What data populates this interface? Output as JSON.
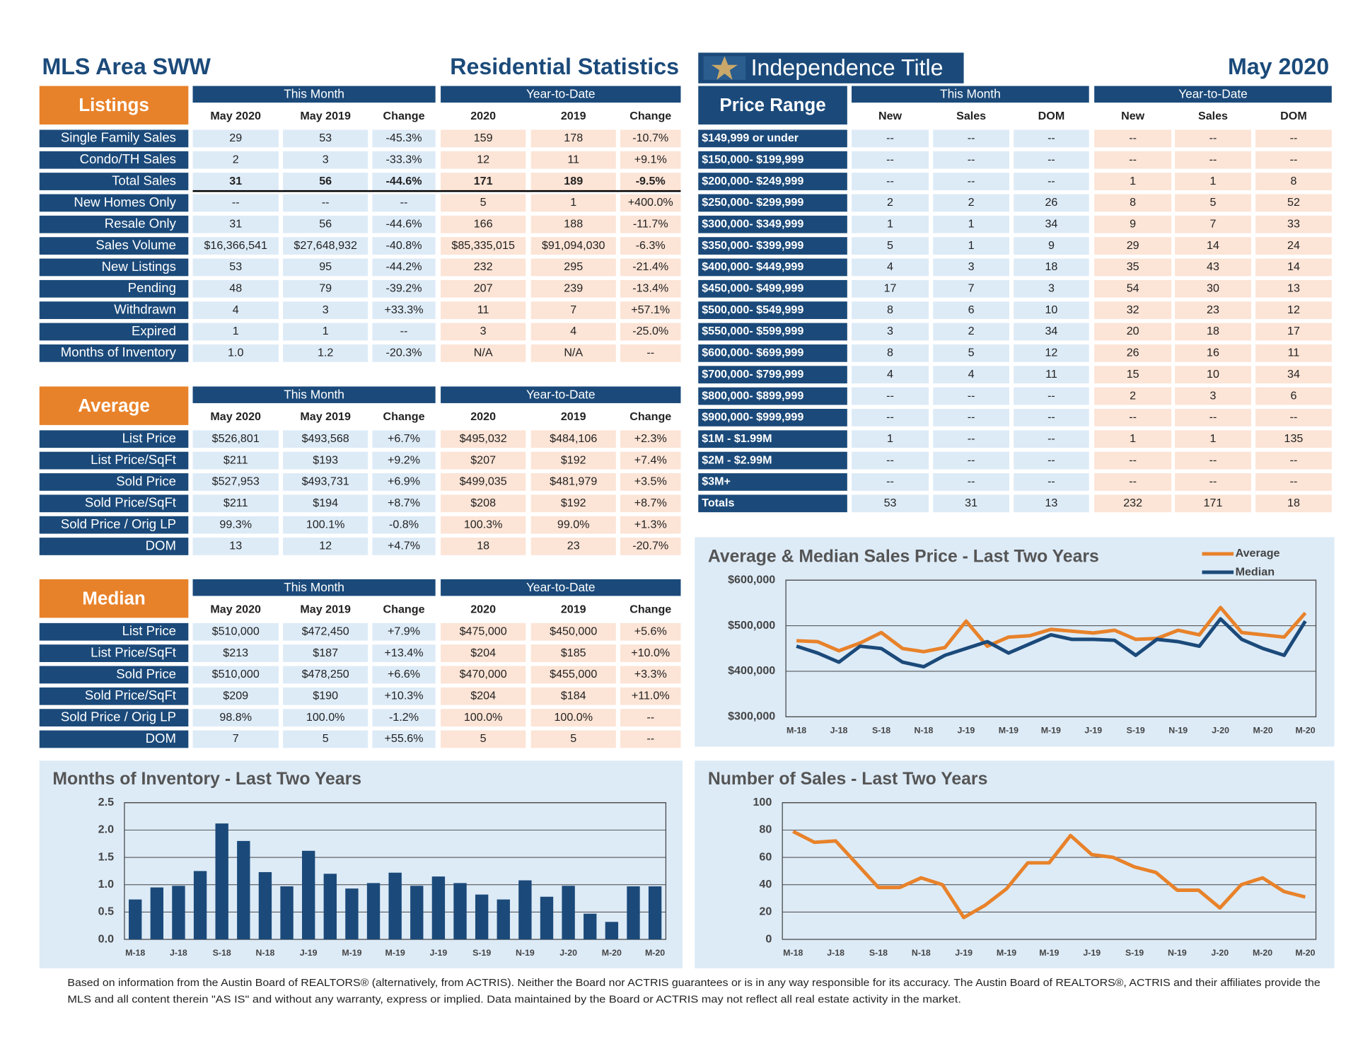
{
  "header": {
    "area": "MLS Area SWW",
    "title": "Residential Statistics",
    "brand": "Independence Title",
    "date": "May 2020"
  },
  "listings": {
    "label": "Listings",
    "groups": [
      "This Month",
      "Year-to-Date"
    ],
    "columns": [
      "May 2020",
      "May 2019",
      "Change",
      "2020",
      "2019",
      "Change"
    ],
    "rows": [
      {
        "label": "Single Family Sales",
        "cells": [
          "29",
          "53",
          "-45.3%",
          "159",
          "178",
          "-10.7%"
        ]
      },
      {
        "label": "Condo/TH Sales",
        "cells": [
          "2",
          "3",
          "-33.3%",
          "12",
          "11",
          "+9.1%"
        ]
      },
      {
        "label": "Total Sales",
        "cells": [
          "31",
          "56",
          "-44.6%",
          "171",
          "189",
          "-9.5%"
        ]
      },
      {
        "label": "New Homes Only",
        "cells": [
          "--",
          "--",
          "--",
          "5",
          "1",
          "+400.0%"
        ]
      },
      {
        "label": "Resale Only",
        "cells": [
          "31",
          "56",
          "-44.6%",
          "166",
          "188",
          "-11.7%"
        ]
      },
      {
        "label": "Sales Volume",
        "cells": [
          "$16,366,541",
          "$27,648,932",
          "-40.8%",
          "$85,335,015",
          "$91,094,030",
          "-6.3%"
        ]
      },
      {
        "label": "New Listings",
        "cells": [
          "53",
          "95",
          "-44.2%",
          "232",
          "295",
          "-21.4%"
        ]
      },
      {
        "label": "Pending",
        "cells": [
          "48",
          "79",
          "-39.2%",
          "207",
          "239",
          "-13.4%"
        ]
      },
      {
        "label": "Withdrawn",
        "cells": [
          "4",
          "3",
          "+33.3%",
          "11",
          "7",
          "+57.1%"
        ]
      },
      {
        "label": "Expired",
        "cells": [
          "1",
          "1",
          "--",
          "3",
          "4",
          "-25.0%"
        ]
      },
      {
        "label": "Months of Inventory",
        "cells": [
          "1.0",
          "1.2",
          "-20.3%",
          "N/A",
          "N/A",
          "--"
        ]
      }
    ]
  },
  "average": {
    "label": "Average",
    "groups": [
      "This Month",
      "Year-to-Date"
    ],
    "columns": [
      "May 2020",
      "May 2019",
      "Change",
      "2020",
      "2019",
      "Change"
    ],
    "rows": [
      {
        "label": "List Price",
        "cells": [
          "$526,801",
          "$493,568",
          "+6.7%",
          "$495,032",
          "$484,106",
          "+2.3%"
        ]
      },
      {
        "label": "List Price/SqFt",
        "cells": [
          "$211",
          "$193",
          "+9.2%",
          "$207",
          "$192",
          "+7.4%"
        ]
      },
      {
        "label": "Sold Price",
        "cells": [
          "$527,953",
          "$493,731",
          "+6.9%",
          "$499,035",
          "$481,979",
          "+3.5%"
        ]
      },
      {
        "label": "Sold Price/SqFt",
        "cells": [
          "$211",
          "$194",
          "+8.7%",
          "$208",
          "$192",
          "+8.7%"
        ]
      },
      {
        "label": "Sold Price / Orig LP",
        "cells": [
          "99.3%",
          "100.1%",
          "-0.8%",
          "100.3%",
          "99.0%",
          "+1.3%"
        ]
      },
      {
        "label": "DOM",
        "cells": [
          "13",
          "12",
          "+4.7%",
          "18",
          "23",
          "-20.7%"
        ]
      }
    ]
  },
  "median": {
    "label": "Median",
    "groups": [
      "This Month",
      "Year-to-Date"
    ],
    "columns": [
      "May 2020",
      "May 2019",
      "Change",
      "2020",
      "2019",
      "Change"
    ],
    "rows": [
      {
        "label": "List Price",
        "cells": [
          "$510,000",
          "$472,450",
          "+7.9%",
          "$475,000",
          "$450,000",
          "+5.6%"
        ]
      },
      {
        "label": "List Price/SqFt",
        "cells": [
          "$213",
          "$187",
          "+13.4%",
          "$204",
          "$185",
          "+10.0%"
        ]
      },
      {
        "label": "Sold Price",
        "cells": [
          "$510,000",
          "$478,250",
          "+6.6%",
          "$470,000",
          "$455,000",
          "+3.3%"
        ]
      },
      {
        "label": "Sold Price/SqFt",
        "cells": [
          "$209",
          "$190",
          "+10.3%",
          "$204",
          "$184",
          "+11.0%"
        ]
      },
      {
        "label": "Sold Price / Orig LP",
        "cells": [
          "98.8%",
          "100.0%",
          "-1.2%",
          "100.0%",
          "100.0%",
          "--"
        ]
      },
      {
        "label": "DOM",
        "cells": [
          "7",
          "5",
          "+55.6%",
          "5",
          "5",
          "--"
        ]
      }
    ]
  },
  "price_range": {
    "label": "Price Range",
    "groups": [
      "This Month",
      "Year-to-Date"
    ],
    "columns": [
      "New",
      "Sales",
      "DOM",
      "New",
      "Sales",
      "DOM"
    ],
    "rows": [
      {
        "label": "$149,999 or under",
        "cells": [
          "--",
          "--",
          "--",
          "--",
          "--",
          "--"
        ]
      },
      {
        "label": "$150,000- $199,999",
        "cells": [
          "--",
          "--",
          "--",
          "--",
          "--",
          "--"
        ]
      },
      {
        "label": "$200,000- $249,999",
        "cells": [
          "--",
          "--",
          "--",
          "1",
          "1",
          "8"
        ]
      },
      {
        "label": "$250,000- $299,999",
        "cells": [
          "2",
          "2",
          "26",
          "8",
          "5",
          "52"
        ]
      },
      {
        "label": "$300,000- $349,999",
        "cells": [
          "1",
          "1",
          "34",
          "9",
          "7",
          "33"
        ]
      },
      {
        "label": "$350,000- $399,999",
        "cells": [
          "5",
          "1",
          "9",
          "29",
          "14",
          "24"
        ]
      },
      {
        "label": "$400,000- $449,999",
        "cells": [
          "4",
          "3",
          "18",
          "35",
          "43",
          "14"
        ]
      },
      {
        "label": "$450,000- $499,999",
        "cells": [
          "17",
          "7",
          "3",
          "54",
          "30",
          "13"
        ]
      },
      {
        "label": "$500,000- $549,999",
        "cells": [
          "8",
          "6",
          "10",
          "32",
          "23",
          "12"
        ]
      },
      {
        "label": "$550,000- $599,999",
        "cells": [
          "3",
          "2",
          "34",
          "20",
          "18",
          "17"
        ]
      },
      {
        "label": "$600,000- $699,999",
        "cells": [
          "8",
          "5",
          "12",
          "26",
          "16",
          "11"
        ]
      },
      {
        "label": "$700,000- $799,999",
        "cells": [
          "4",
          "4",
          "11",
          "15",
          "10",
          "34"
        ]
      },
      {
        "label": "$800,000- $899,999",
        "cells": [
          "--",
          "--",
          "--",
          "2",
          "3",
          "6"
        ]
      },
      {
        "label": "$900,000- $999,999",
        "cells": [
          "--",
          "--",
          "--",
          "--",
          "--",
          "--"
        ]
      },
      {
        "label": "$1M - $1.99M",
        "cells": [
          "1",
          "--",
          "--",
          "1",
          "1",
          "135"
        ]
      },
      {
        "label": "$2M - $2.99M",
        "cells": [
          "--",
          "--",
          "--",
          "--",
          "--",
          "--"
        ]
      },
      {
        "label": "$3M+",
        "cells": [
          "--",
          "--",
          "--",
          "--",
          "--",
          "--"
        ]
      },
      {
        "label": "Totals",
        "cells": [
          "53",
          "31",
          "13",
          "232",
          "171",
          "18"
        ]
      }
    ]
  },
  "chart_data": [
    {
      "type": "line",
      "title": "Average & Median Sales Price - Last Two Years",
      "categories": [
        "M-18",
        null,
        "J-18",
        null,
        "S-18",
        null,
        "N-18",
        null,
        "J-19",
        null,
        "M-19",
        null,
        "M-19",
        null,
        "J-19",
        null,
        "S-19",
        null,
        "N-19",
        null,
        "J-20",
        null,
        "M-20",
        null,
        "M-20"
      ],
      "series": [
        {
          "name": "Average",
          "color": "#e8822a",
          "values": [
            467000,
            465000,
            445000,
            462000,
            485000,
            450000,
            443000,
            452000,
            510000,
            455000,
            475000,
            478000,
            492000,
            488000,
            484000,
            490000,
            470000,
            472000,
            490000,
            480000,
            540000,
            485000,
            480000,
            475000,
            528000
          ]
        },
        {
          "name": "Median",
          "color": "#1b4a7a",
          "values": [
            455000,
            440000,
            420000,
            455000,
            450000,
            420000,
            410000,
            435000,
            450000,
            465000,
            440000,
            460000,
            480000,
            470000,
            470000,
            468000,
            435000,
            470000,
            465000,
            455000,
            515000,
            470000,
            450000,
            435000,
            510000
          ]
        }
      ],
      "ylim": [
        300000,
        600000
      ],
      "yticks": [
        {
          "value": 300000,
          "label": "$300,000"
        },
        {
          "value": 400000,
          "label": "$400,000"
        },
        {
          "value": 500000,
          "label": "$500,000"
        },
        {
          "value": 600000,
          "label": "$600,000"
        }
      ],
      "grid": true,
      "legend": "top-right"
    },
    {
      "type": "bar",
      "title": "Months of Inventory - Last Two Years",
      "categories": [
        "M-18",
        null,
        "J-18",
        null,
        "S-18",
        null,
        "N-18",
        null,
        "J-19",
        null,
        "M-19",
        null,
        "M-19",
        null,
        "J-19",
        null,
        "S-19",
        null,
        "N-19",
        null,
        "J-20",
        null,
        "M-20",
        null,
        "M-20"
      ],
      "values": [
        0.73,
        0.95,
        0.98,
        1.25,
        2.12,
        1.8,
        1.23,
        0.97,
        1.62,
        1.2,
        0.93,
        1.03,
        1.22,
        0.98,
        1.15,
        1.03,
        0.82,
        0.73,
        1.08,
        0.78,
        0.98,
        0.47,
        0.32,
        0.97,
        0.97
      ],
      "color": "#1b4a7a",
      "ylim": [
        0,
        2.5
      ],
      "yticks": [
        {
          "value": 0,
          "label": "0.0"
        },
        0.5,
        {
          "value": 1,
          "label": "1.0"
        },
        1.5,
        {
          "value": 2,
          "label": "2.0"
        },
        2.5
      ],
      "grid": true
    },
    {
      "type": "line",
      "title": "Number of Sales - Last Two Years",
      "categories": [
        "M-18",
        null,
        "J-18",
        null,
        "S-18",
        null,
        "N-18",
        null,
        "J-19",
        null,
        "M-19",
        null,
        "M-19",
        null,
        "J-19",
        null,
        "S-19",
        null,
        "N-19",
        null,
        "J-20",
        null,
        "M-20",
        null,
        "M-20"
      ],
      "values": [
        79,
        71,
        72,
        55,
        38,
        38,
        45,
        40,
        16,
        25,
        37,
        56,
        56,
        76,
        62,
        60,
        53,
        49,
        36,
        36,
        23,
        40,
        45,
        35,
        31
      ],
      "color": "#e8822a",
      "ylim": [
        0,
        100
      ],
      "yticks": [
        0,
        20,
        40,
        60,
        80,
        100
      ],
      "grid": true
    }
  ],
  "footnote": [
    "Based on information from the Austin Board of REALTORS® (alternatively, from ACTRIS). Neither the Board nor ACTRIS guarantees or is in any way responsible for its accuracy. The Austin Board of REALTORS®, ACTRIS and their affiliates provide the",
    "MLS and all content therein \"AS IS\" and without any warranty, express or implied. Data maintained by the Board or ACTRIS may not reflect all real estate activity in the market."
  ]
}
